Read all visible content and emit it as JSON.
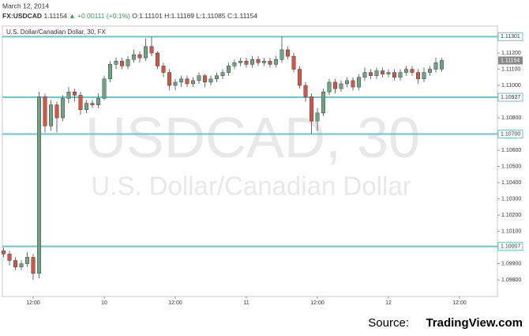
{
  "header": {
    "date": "March 12, 2014",
    "symbol": "FX:USDCAD",
    "change": "+0.00111 (+0.1%)",
    "open": "O:1.11101",
    "high": "H:1.11169",
    "low": "L:1.11085",
    "close": "C:1.11154"
  },
  "chart_data": {
    "type": "candlestick",
    "title": "U.S. Dollar/Canadian Dollar, 30, FX",
    "watermark": "USDCAD, 30",
    "watermark_subtitle": "U.S. Dollar/Canadian Dollar",
    "source_label": "Source:",
    "source": "TradingView.com",
    "last_price": 1.11154,
    "up_color": "#6ba583",
    "down_color": "#d75442",
    "line_color": "#6cc4cc",
    "xlim": [
      6.8,
      90.4
    ],
    "xticks": [
      {
        "value": 12,
        "label": "12:00"
      },
      {
        "value": 24,
        "label": "10"
      },
      {
        "value": 36,
        "label": "12:00"
      },
      {
        "value": 48,
        "label": "11"
      },
      {
        "value": 60,
        "label": "12:00"
      },
      {
        "value": 72,
        "label": "12"
      },
      {
        "value": 84,
        "label": "12:00"
      }
    ],
    "ylim": [
      1.09698,
      1.11366
    ],
    "yticks": [
      {
        "value": 1.112,
        "label": "1.11200"
      },
      {
        "value": 1.111,
        "label": "1.11100"
      },
      {
        "value": 1.11,
        "label": "1.11000"
      },
      {
        "value": 1.108,
        "label": "1.10800"
      },
      {
        "value": 1.106,
        "label": "1.10600"
      },
      {
        "value": 1.105,
        "label": "1.10500"
      },
      {
        "value": 1.104,
        "label": "1.10400"
      },
      {
        "value": 1.103,
        "label": "1.10300"
      },
      {
        "value": 1.102,
        "label": "1.10200"
      },
      {
        "value": 1.101,
        "label": "1.10100"
      },
      {
        "value": 1.099,
        "label": "1.09900"
      },
      {
        "value": 1.098,
        "label": "1.09800"
      }
    ],
    "hlines": [
      1.11301,
      1.10927,
      {
        "value": 1.107,
        "label": "1.10700"
      },
      1.10007
    ],
    "x": [
      7,
      8,
      9,
      10,
      11,
      12,
      13,
      14,
      15,
      16,
      17,
      18,
      19,
      20,
      21,
      22,
      23,
      24,
      25,
      26,
      27,
      28,
      29,
      30,
      31,
      32,
      33,
      34,
      35,
      36,
      37,
      38,
      39,
      40,
      41,
      42,
      43,
      44,
      45,
      46,
      47,
      48,
      49,
      50,
      51,
      52,
      53,
      54,
      55,
      56,
      57,
      58,
      59,
      60,
      61,
      62,
      63,
      64,
      65,
      66,
      67,
      68,
      69,
      70,
      71,
      72,
      73,
      74,
      75,
      76,
      77,
      78,
      79,
      80,
      81
    ],
    "open": [
      1.0998,
      1.0996,
      1.0992,
      1.0988,
      1.099,
      1.0994,
      1.0984,
      1.1093,
      1.1075,
      1.1088,
      1.108,
      1.1092,
      1.1096,
      1.1094,
      1.1085,
      1.1089,
      1.1088,
      1.1092,
      1.1104,
      1.1113,
      1.1115,
      1.1112,
      1.1116,
      1.1119,
      1.1117,
      1.1124,
      1.112,
      1.1112,
      1.1108,
      1.11,
      1.1102,
      1.1104,
      1.1101,
      1.1103,
      1.1106,
      1.1102,
      1.1104,
      1.1106,
      1.1108,
      1.1112,
      1.1114,
      1.1115,
      1.1113,
      1.1116,
      1.1114,
      1.1115,
      1.1113,
      1.1116,
      1.1122,
      1.1118,
      1.111,
      1.11,
      1.1093,
      1.1078,
      1.1083,
      1.1096,
      1.1102,
      1.1098,
      1.1101,
      1.1103,
      1.1099,
      1.1105,
      1.1108,
      1.1106,
      1.1109,
      1.1107,
      1.1108,
      1.1105,
      1.1108,
      1.111,
      1.1108,
      1.1104,
      1.1108,
      1.111,
      1.11101
    ],
    "high": [
      1.1,
      1.0998,
      1.0994,
      1.0992,
      1.0997,
      1.0996,
      1.1096,
      1.1095,
      1.1091,
      1.109,
      1.1094,
      1.1099,
      1.1098,
      1.1096,
      1.1091,
      1.1091,
      1.1095,
      1.1106,
      1.1115,
      1.1117,
      1.1117,
      1.1118,
      1.1122,
      1.1121,
      1.1129,
      1.113,
      1.1121,
      1.1114,
      1.111,
      1.1104,
      1.1106,
      1.1106,
      1.1105,
      1.1108,
      1.1107,
      1.1106,
      1.1108,
      1.111,
      1.1114,
      1.1116,
      1.1117,
      1.1117,
      1.1118,
      1.1118,
      1.1117,
      1.1117,
      1.1118,
      1.113,
      1.1124,
      1.112,
      1.1112,
      1.1102,
      1.1095,
      1.1086,
      1.1098,
      1.1104,
      1.1104,
      1.1103,
      1.1105,
      1.1105,
      1.1107,
      1.1111,
      1.111,
      1.1111,
      1.1111,
      1.111,
      1.111,
      1.111,
      1.1112,
      1.1112,
      1.111,
      1.1111,
      1.1112,
      1.1117,
      1.11169
    ],
    "low": [
      1.0994,
      1.0989,
      1.0986,
      1.0986,
      1.0988,
      1.098,
      1.0981,
      1.1071,
      1.1072,
      1.1071,
      1.1078,
      1.1089,
      1.109,
      1.1082,
      1.1083,
      1.1086,
      1.1086,
      1.1091,
      1.1102,
      1.111,
      1.111,
      1.111,
      1.1114,
      1.1114,
      1.1115,
      1.1118,
      1.111,
      1.1105,
      1.1097,
      1.1097,
      1.1099,
      1.1099,
      1.1099,
      1.1101,
      1.1099,
      1.11,
      1.1102,
      1.1104,
      1.1106,
      1.111,
      1.1112,
      1.1111,
      1.1111,
      1.1112,
      1.1112,
      1.1111,
      1.1111,
      1.1114,
      1.1116,
      1.1108,
      1.1098,
      1.109,
      1.107,
      1.1072,
      1.1081,
      1.1094,
      1.1095,
      1.1096,
      1.1099,
      1.1097,
      1.1097,
      1.1103,
      1.1104,
      1.1104,
      1.1105,
      1.1105,
      1.1103,
      1.1103,
      1.1106,
      1.1106,
      1.1101,
      1.1102,
      1.1106,
      1.1108,
      1.11085
    ],
    "close": [
      1.0996,
      1.0992,
      1.0988,
      1.099,
      1.0994,
      1.0984,
      1.1093,
      1.1075,
      1.1088,
      1.108,
      1.1092,
      1.1096,
      1.1094,
      1.1085,
      1.1089,
      1.1088,
      1.1092,
      1.1104,
      1.1113,
      1.1115,
      1.1112,
      1.1116,
      1.1119,
      1.1117,
      1.1124,
      1.112,
      1.1112,
      1.1108,
      1.11,
      1.1102,
      1.1104,
      1.1101,
      1.1103,
      1.1106,
      1.1102,
      1.1104,
      1.1106,
      1.1108,
      1.1112,
      1.1114,
      1.1115,
      1.1113,
      1.1116,
      1.1114,
      1.1115,
      1.1113,
      1.1116,
      1.1122,
      1.1118,
      1.111,
      1.11,
      1.1093,
      1.1078,
      1.1083,
      1.1096,
      1.1102,
      1.1098,
      1.1101,
      1.1103,
      1.1099,
      1.1105,
      1.1108,
      1.1106,
      1.1109,
      1.1107,
      1.1108,
      1.1105,
      1.1108,
      1.111,
      1.1108,
      1.1104,
      1.1108,
      1.111,
      1.1114,
      1.11154
    ]
  }
}
